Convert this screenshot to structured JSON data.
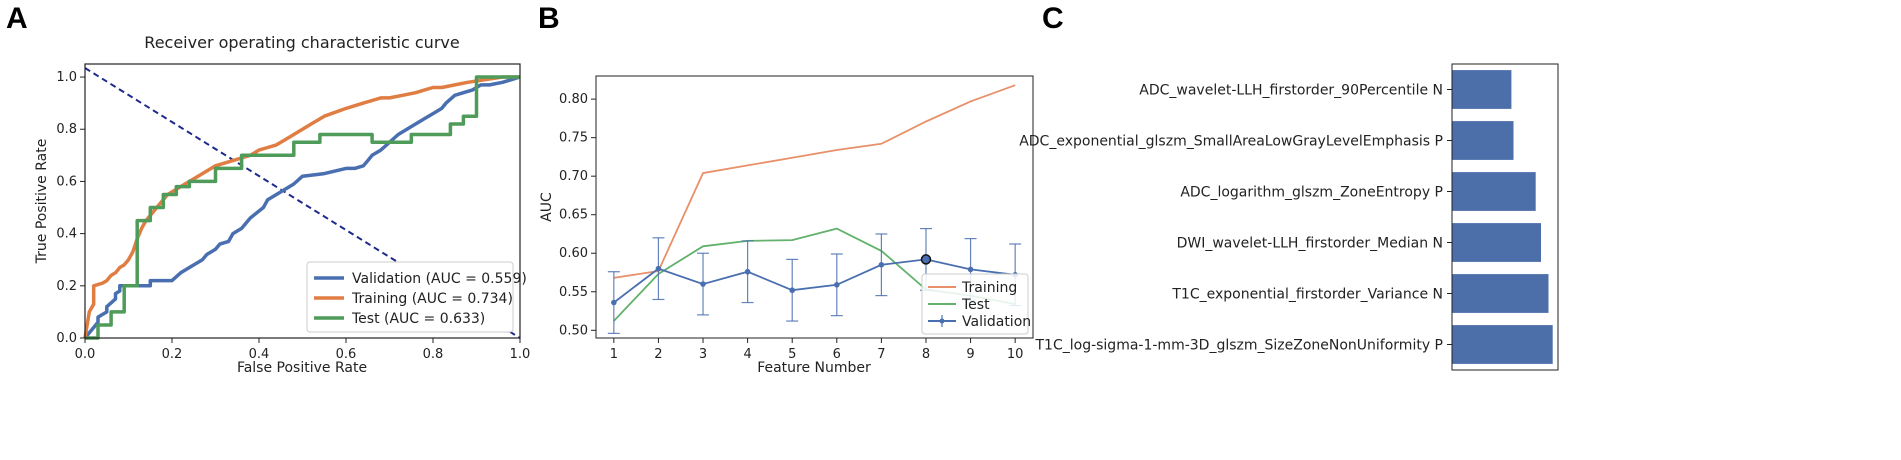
{
  "panels": {
    "a": "A",
    "b": "B",
    "c": "C"
  },
  "chart_data": [
    {
      "type": "line",
      "title": "Receiver operating characteristic curve",
      "xlabel": "False Positive Rate",
      "ylabel": "True Positive Rate",
      "xlim": [
        0,
        1
      ],
      "ylim": [
        0,
        1.05
      ],
      "xticks": [
        "0.0",
        "0.2",
        "0.4",
        "0.6",
        "0.8",
        "1.0"
      ],
      "yticks": [
        "0.0",
        "0.2",
        "0.4",
        "0.6",
        "0.8",
        "1.0"
      ],
      "legend_position": "bottom-right",
      "series": [
        {
          "name": "Validation (AUC = 0.559)",
          "color": "#4a6fb0",
          "x": [
            0,
            0.03,
            0.03,
            0.05,
            0.05,
            0.07,
            0.07,
            0.08,
            0.08,
            0.15,
            0.15,
            0.2,
            0.22,
            0.24,
            0.25,
            0.27,
            0.28,
            0.3,
            0.31,
            0.33,
            0.34,
            0.36,
            0.38,
            0.41,
            0.42,
            0.45,
            0.48,
            0.5,
            0.55,
            0.6,
            0.62,
            0.64,
            0.65,
            0.66,
            0.68,
            0.7,
            0.72,
            0.74,
            0.76,
            0.78,
            0.8,
            0.82,
            0.83,
            0.85,
            0.87,
            0.89,
            0.9,
            0.91,
            0.93,
            0.96,
            0.98,
            1.0
          ],
          "y": [
            0,
            0.06,
            0.08,
            0.1,
            0.12,
            0.15,
            0.17,
            0.18,
            0.2,
            0.2,
            0.22,
            0.22,
            0.25,
            0.27,
            0.28,
            0.3,
            0.32,
            0.34,
            0.36,
            0.37,
            0.4,
            0.42,
            0.46,
            0.5,
            0.53,
            0.56,
            0.59,
            0.62,
            0.63,
            0.65,
            0.65,
            0.66,
            0.68,
            0.7,
            0.72,
            0.75,
            0.78,
            0.8,
            0.82,
            0.84,
            0.86,
            0.88,
            0.9,
            0.93,
            0.94,
            0.95,
            0.96,
            0.97,
            0.97,
            0.98,
            0.99,
            1.0
          ]
        },
        {
          "name": "Training (AUC = 0.734)",
          "color": "#e07d43",
          "x": [
            0,
            0.01,
            0.02,
            0.02,
            0.04,
            0.05,
            0.06,
            0.07,
            0.08,
            0.09,
            0.1,
            0.11,
            0.12,
            0.13,
            0.14,
            0.15,
            0.16,
            0.17,
            0.18,
            0.19,
            0.2,
            0.22,
            0.24,
            0.26,
            0.28,
            0.3,
            0.32,
            0.34,
            0.36,
            0.38,
            0.4,
            0.42,
            0.44,
            0.46,
            0.48,
            0.5,
            0.52,
            0.55,
            0.6,
            0.64,
            0.66,
            0.68,
            0.7,
            0.73,
            0.76,
            0.78,
            0.8,
            0.82,
            0.85,
            0.88,
            0.92,
            0.96,
            1.0
          ],
          "y": [
            0,
            0.1,
            0.13,
            0.2,
            0.21,
            0.22,
            0.24,
            0.25,
            0.27,
            0.28,
            0.3,
            0.33,
            0.38,
            0.42,
            0.45,
            0.47,
            0.49,
            0.51,
            0.53,
            0.55,
            0.56,
            0.58,
            0.6,
            0.62,
            0.64,
            0.66,
            0.67,
            0.68,
            0.69,
            0.7,
            0.72,
            0.73,
            0.74,
            0.76,
            0.78,
            0.8,
            0.82,
            0.85,
            0.88,
            0.9,
            0.91,
            0.92,
            0.92,
            0.93,
            0.94,
            0.95,
            0.96,
            0.96,
            0.97,
            0.98,
            0.99,
            1.0,
            1.0
          ]
        },
        {
          "name": "Test (AUC = 0.633)",
          "color": "#4f9c5a",
          "x": [
            0,
            0.03,
            0.03,
            0.06,
            0.06,
            0.09,
            0.09,
            0.12,
            0.12,
            0.15,
            0.15,
            0.18,
            0.18,
            0.21,
            0.21,
            0.24,
            0.24,
            0.3,
            0.3,
            0.36,
            0.36,
            0.48,
            0.48,
            0.54,
            0.54,
            0.66,
            0.66,
            0.75,
            0.75,
            0.84,
            0.84,
            0.87,
            0.87,
            0.9,
            0.9,
            1.0
          ],
          "y": [
            0,
            0,
            0.05,
            0.05,
            0.1,
            0.1,
            0.2,
            0.2,
            0.45,
            0.45,
            0.5,
            0.5,
            0.55,
            0.55,
            0.58,
            0.58,
            0.6,
            0.6,
            0.65,
            0.65,
            0.7,
            0.7,
            0.75,
            0.75,
            0.78,
            0.78,
            0.75,
            0.75,
            0.78,
            0.78,
            0.82,
            0.82,
            0.85,
            0.85,
            1.0,
            1.0
          ]
        }
      ]
    },
    {
      "type": "line",
      "xlabel": "Feature Number",
      "ylabel": "AUC",
      "xlim": [
        0.6,
        10.4
      ],
      "ylim": [
        0.49,
        0.83
      ],
      "x": [
        1,
        2,
        3,
        4,
        5,
        6,
        7,
        8,
        9,
        10
      ],
      "xticks": [
        "1",
        "2",
        "3",
        "4",
        "5",
        "6",
        "7",
        "8",
        "9",
        "10"
      ],
      "yticks": [
        "0.50",
        "0.55",
        "0.60",
        "0.65",
        "0.70",
        "0.75",
        "0.80"
      ],
      "legend_position": "bottom-right",
      "highlight_x": 8,
      "series": [
        {
          "name": "Training",
          "color": "#e8906a",
          "values": [
            0.568,
            0.577,
            0.704,
            0.714,
            0.724,
            0.734,
            0.742,
            0.771,
            0.797,
            0.818
          ]
        },
        {
          "name": "Test",
          "color": "#62b26d",
          "values": [
            0.512,
            0.573,
            0.609,
            0.616,
            0.617,
            0.632,
            0.603,
            0.553,
            0.545,
            0.534
          ]
        },
        {
          "name": "Validation",
          "color": "#4a6fb0",
          "values": [
            0.536,
            0.58,
            0.56,
            0.576,
            0.552,
            0.559,
            0.585,
            0.592,
            0.579,
            0.572
          ],
          "err": [
            0.04,
            0.04,
            0.04,
            0.04,
            0.04,
            0.04,
            0.04,
            0.04,
            0.04,
            0.04
          ]
        }
      ]
    },
    {
      "type": "bar",
      "orientation": "horizontal",
      "color": "#4c6faa",
      "categories": [
        "ADC_wavelet-LLH_firstorder_90Percentile N",
        "ADC_exponential_glszm_SmallAreaLowGrayLevelEmphasis P",
        "ADC_logarithm_glszm_ZoneEntropy P",
        "DWI_wavelet-LLH_firstorder_Median N",
        "T1C_exponential_firstorder_Variance N",
        "T1C_log-sigma-1-mm-3D_glszm_SizeZoneNonUniformity P"
      ],
      "values": [
        0.56,
        0.58,
        0.79,
        0.84,
        0.91,
        0.95
      ],
      "xlim": [
        0,
        1
      ]
    }
  ]
}
